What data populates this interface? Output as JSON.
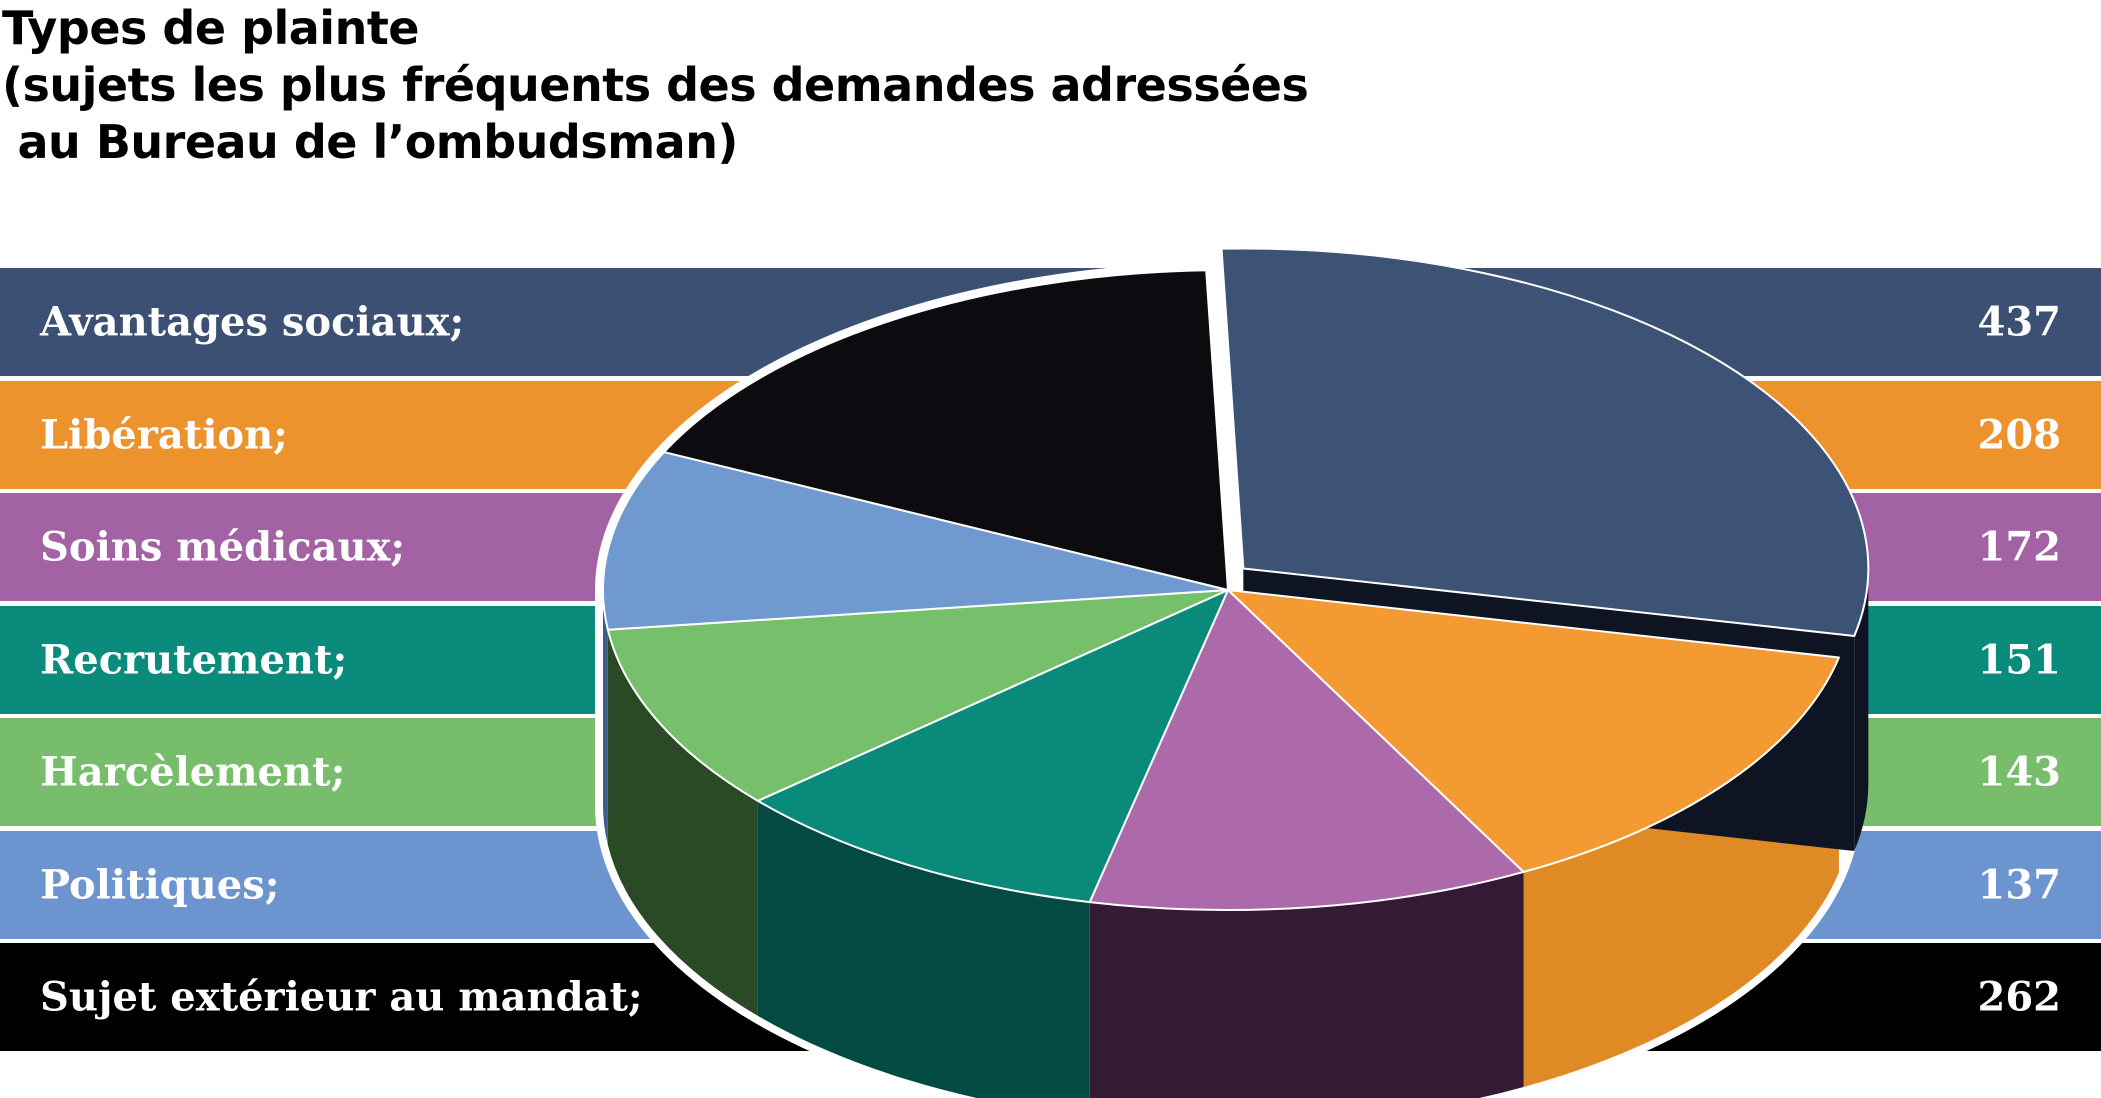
{
  "chart_data": {
    "type": "pie",
    "title_lines": [
      "Types de plainte",
      "(sujets les plus fréquents des demandes adressées",
      " au Bureau de l’ombudsman)"
    ],
    "slices": [
      {
        "label": "Avantages sociaux;",
        "value": 437,
        "color": "#3c5073"
      },
      {
        "label": "Libération;",
        "value": 208,
        "color": "#ed932d"
      },
      {
        "label": "Soins médicaux;",
        "value": 172,
        "color": "#a262a4"
      },
      {
        "label": "Recrutement;",
        "value": 151,
        "color": "#0b8b7b"
      },
      {
        "label": "Harcèlement;",
        "value": 143,
        "color": "#77bd6b"
      },
      {
        "label": "Politiques;",
        "value": 137,
        "color": "#6c95cf"
      },
      {
        "label": "Sujet extérieur au mandat;",
        "value": 262,
        "color": "#000000"
      }
    ],
    "pie_slice_colors": [
      "#3d5375",
      "#f39b32",
      "#ac6aaa",
      "#0a8a7b",
      "#77c06b",
      "#7099cf",
      "#0b0b10"
    ],
    "side_colors": [
      "#0f1422",
      "#e08a25",
      "#341a34",
      "#034a43",
      "#2a4a25",
      "#3e5c8a",
      "#000000"
    ],
    "exploded_slice": "Avantages sociaux;",
    "legend": "rows behind pie"
  }
}
